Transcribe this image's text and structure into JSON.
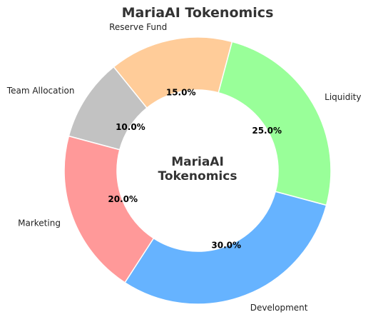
{
  "chart_data": {
    "type": "pie",
    "donut": true,
    "title": "MariaAI Tokenomics",
    "center_label": [
      "MariaAI",
      "Tokenomics"
    ],
    "slices": [
      {
        "label": "Reserve Fund",
        "value": 15.0,
        "pct_label": "15.0%",
        "color": "#ffcc99"
      },
      {
        "label": "Team Allocation",
        "value": 10.0,
        "pct_label": "10.0%",
        "color": "#c2c2c2"
      },
      {
        "label": "Marketing",
        "value": 20.0,
        "pct_label": "20.0%",
        "color": "#ff9999"
      },
      {
        "label": "Development",
        "value": 30.0,
        "pct_label": "30.0%",
        "color": "#66b3ff"
      },
      {
        "label": "Liquidity",
        "value": 25.0,
        "pct_label": "25.0%",
        "color": "#99ff99"
      }
    ],
    "legend": "none"
  }
}
